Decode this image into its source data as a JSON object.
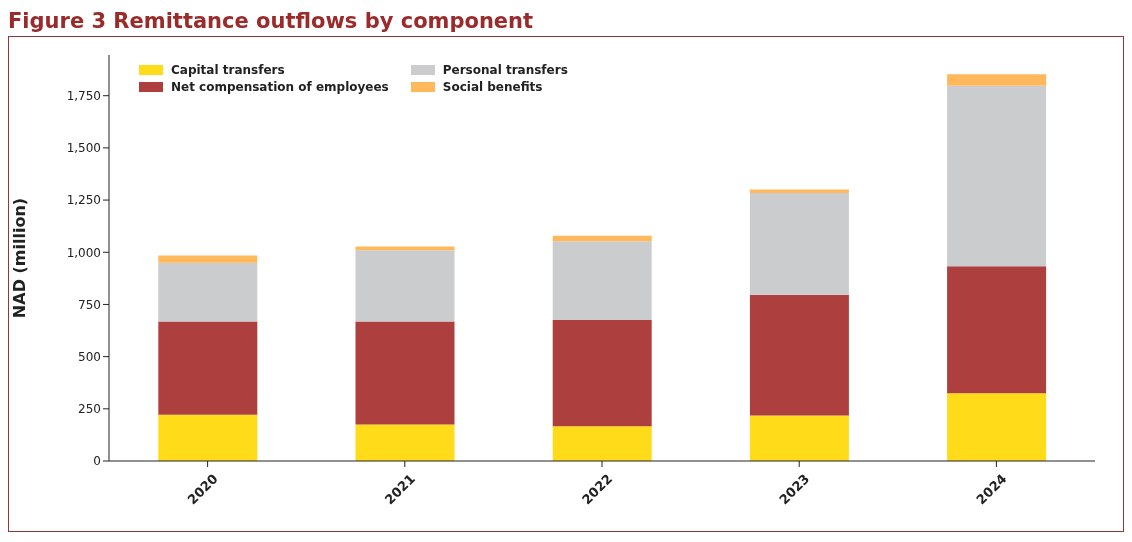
{
  "chart_data": {
    "type": "bar",
    "title": "Figure 3 Remittance outflows by component",
    "ylabel": "NAD (million)",
    "categories": [
      "2020",
      "2021",
      "2022",
      "2023",
      "2024"
    ],
    "series": [
      {
        "name": "Capital transfers",
        "color": "#ffdb1a",
        "values": [
          222,
          175,
          167,
          218,
          325
        ]
      },
      {
        "name": "Net compensation of employees",
        "color": "#ad3f3f",
        "values": [
          446,
          493,
          509,
          578,
          608
        ]
      },
      {
        "name": "Personal transfers",
        "color": "#cbcccd",
        "values": [
          282,
          342,
          377,
          488,
          865
        ]
      },
      {
        "name": "Social benefits",
        "color": "#ffb85c",
        "values": [
          34,
          17,
          26,
          17,
          55
        ]
      }
    ],
    "stacked": true,
    "ylim": [
      0,
      1945
    ],
    "yticks": [
      0,
      250,
      500,
      750,
      {
        "value": 1000,
        "label": "1,000"
      },
      {
        "value": 1250,
        "label": "1,250"
      },
      {
        "value": 1500,
        "label": "1,500"
      },
      {
        "value": 1750,
        "label": "1,750"
      }
    ],
    "grid": false,
    "legend": "top left"
  }
}
